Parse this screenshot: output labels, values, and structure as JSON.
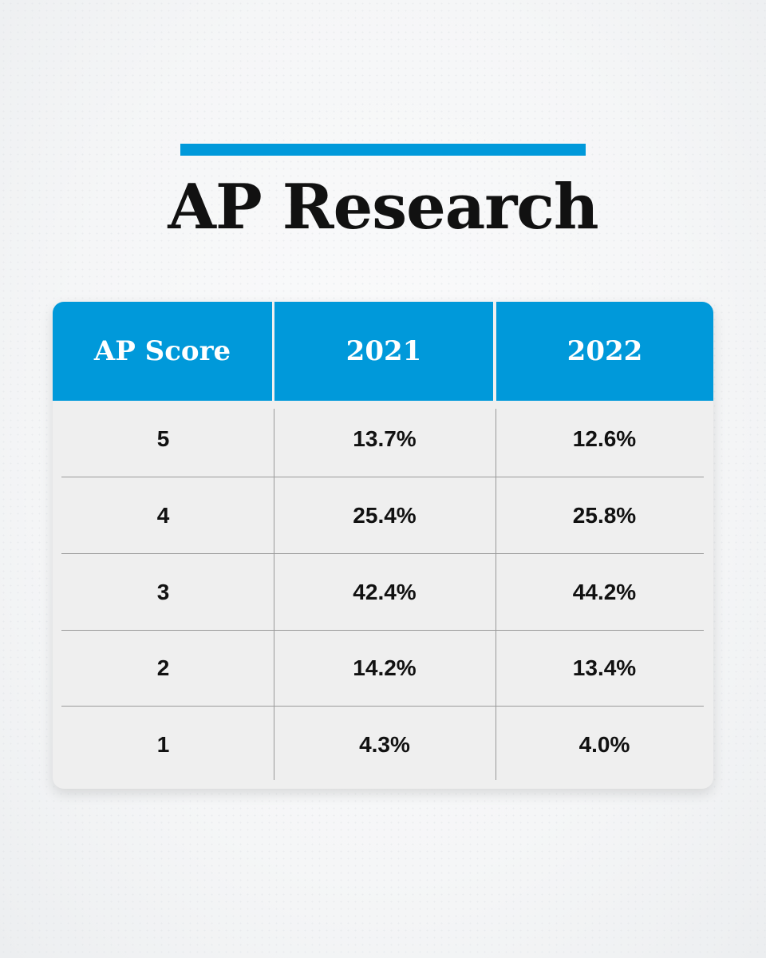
{
  "title": "AP Research",
  "colors": {
    "accent": "#0099da",
    "header_text": "#ffffff",
    "table_bg": "#efefef",
    "text": "#111111"
  },
  "table": {
    "headers": [
      "AP Score",
      "2021",
      "2022"
    ],
    "rows": [
      [
        "5",
        "13.7%",
        "12.6%"
      ],
      [
        "4",
        "25.4%",
        "25.8%"
      ],
      [
        "3",
        "42.4%",
        "44.2%"
      ],
      [
        "2",
        "14.2%",
        "13.4%"
      ],
      [
        "1",
        "4.3%",
        "4.0%"
      ]
    ]
  }
}
